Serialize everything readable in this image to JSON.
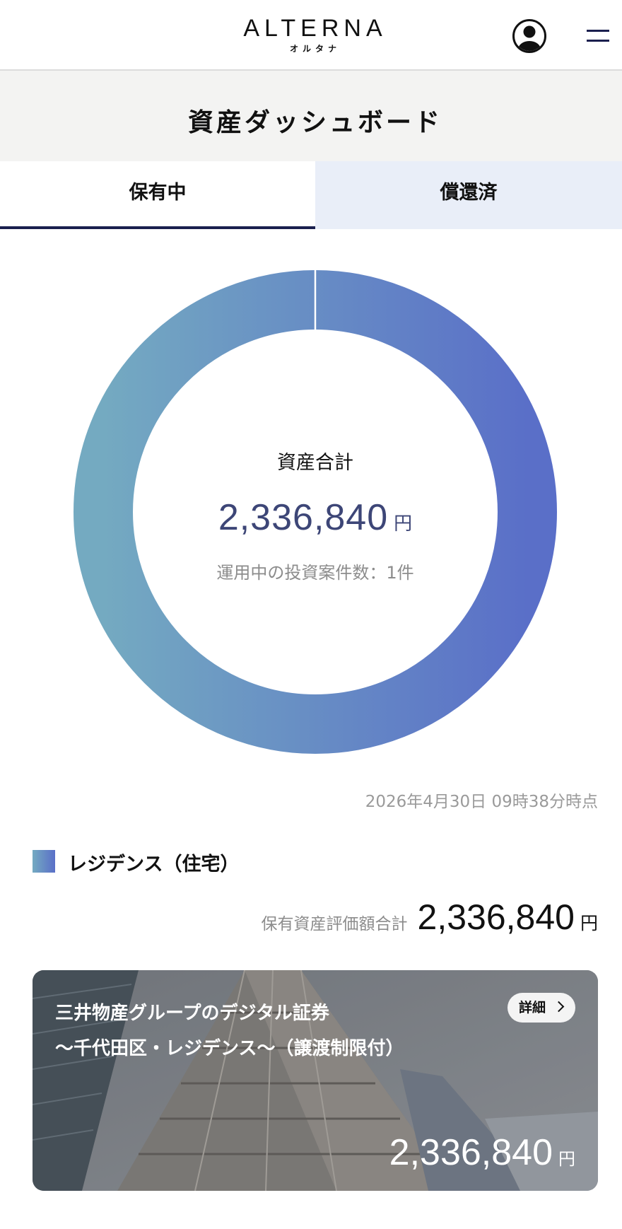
{
  "header": {
    "logo_text": "ALTERNA",
    "logo_subtext": "オルタナ",
    "icons": {
      "account": "user-circle-icon",
      "menu": "hamburger-menu-icon"
    }
  },
  "page_title": "資産ダッシュボード",
  "tabs": [
    {
      "label": "保有中",
      "active": true
    },
    {
      "label": "償還済",
      "active": false
    }
  ],
  "summary": {
    "total_label": "資産合計",
    "total_value": "2,336,840",
    "unit": "円",
    "case_count_text": "運用中の投資案件数：1件"
  },
  "donut": {
    "segments": [
      {
        "label": "レジデンス（住宅）",
        "share": 1.0
      }
    ],
    "gradient_colors": [
      "#74aac1",
      "#5a6fc8"
    ]
  },
  "timestamp": "2026年4月30日 09時38分時点",
  "category": {
    "name": "レジデンス（住宅）",
    "sum_label": "保有資産評価額合計",
    "sum_value": "2,336,840",
    "unit": "円"
  },
  "investment_card": {
    "title_line1": "三井物産グループのデジタル証券",
    "title_line2": "〜千代田区・レジデンス〜（譲渡制限付）",
    "detail_label": "詳細",
    "value": "2,336,840",
    "unit": "円"
  },
  "colors": {
    "accent": "#1a1f4e",
    "total_value": "#3d4677",
    "inactive_tab": "#e9eef8"
  }
}
